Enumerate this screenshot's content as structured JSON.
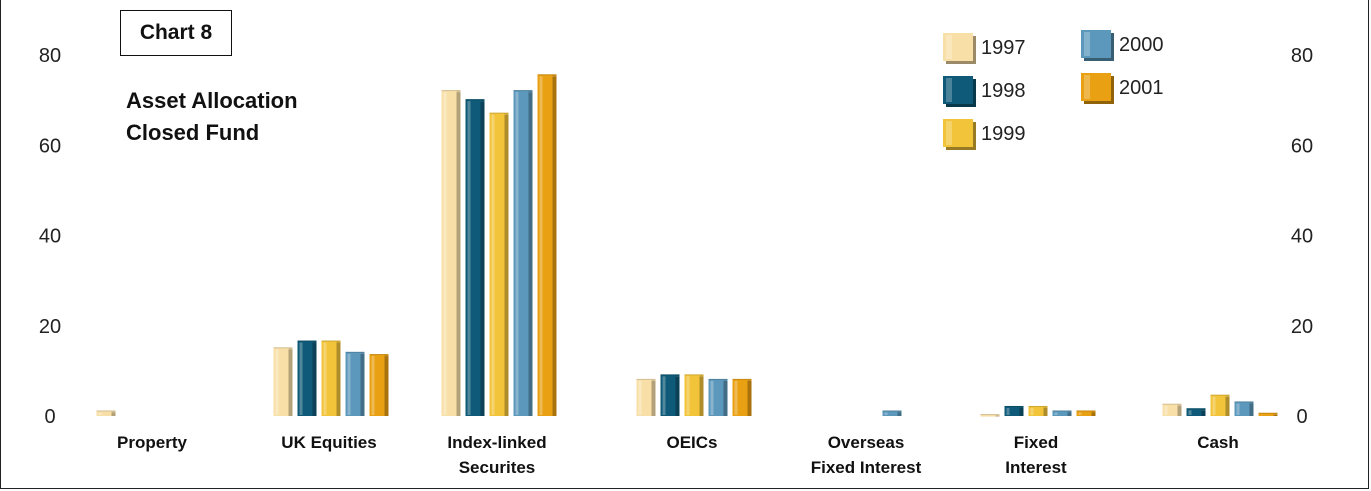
{
  "chart_label": "Chart 8",
  "title_line1": "Asset Allocation",
  "title_line2": "Closed Fund",
  "colors": {
    "1997": "#f8dfa8",
    "1998": "#0e5a78",
    "1999": "#f2c43a",
    "2000": "#5b98bb",
    "2001": "#e9a012"
  },
  "chart_data": {
    "type": "bar",
    "title": "Asset Allocation Closed Fund",
    "categories": [
      [
        "Property"
      ],
      [
        "UK Equities"
      ],
      [
        "Index-linked",
        "Securites"
      ],
      [
        "OEICs"
      ],
      [
        "Overseas",
        "Fixed Interest"
      ],
      [
        "Fixed",
        "Interest"
      ],
      [
        "Cash"
      ]
    ],
    "series": [
      {
        "name": "1997",
        "values": [
          1,
          15,
          72,
          8,
          0,
          0.2,
          2.5
        ]
      },
      {
        "name": "1998",
        "values": [
          0,
          16.5,
          70,
          9,
          0,
          2,
          1.5
        ]
      },
      {
        "name": "1999",
        "values": [
          0,
          16.5,
          67,
          9,
          0,
          2,
          4.5
        ]
      },
      {
        "name": "2000",
        "values": [
          0,
          14,
          72,
          8,
          1,
          1,
          3
        ]
      },
      {
        "name": "2001",
        "values": [
          0,
          13.5,
          75.5,
          8,
          0,
          1,
          0.5
        ]
      }
    ],
    "ylim": [
      0,
      80
    ],
    "yticks": [
      0,
      20,
      40,
      60,
      80
    ],
    "legend": [
      "1997",
      "1998",
      "1999",
      "2000",
      "2001"
    ],
    "legend_position": "top-right",
    "grid": false
  }
}
